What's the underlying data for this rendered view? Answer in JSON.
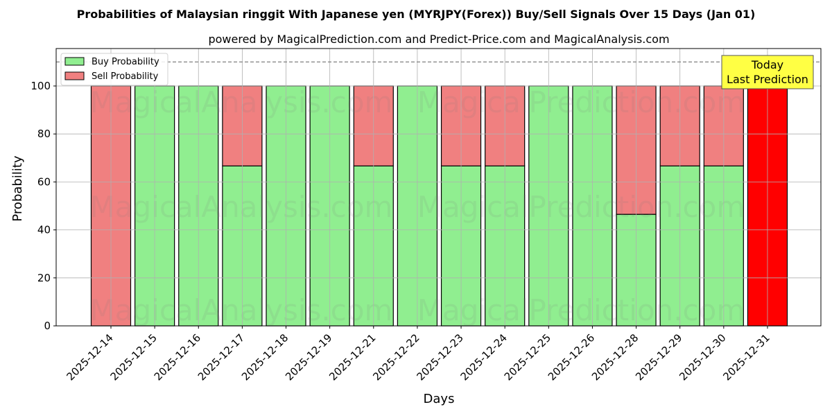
{
  "chart_data": {
    "type": "bar",
    "stacked": true,
    "title": "Probabilities of Malaysian ringgit With Japanese yen (MYRJPY(Forex)) Buy/Sell Signals Over 15 Days (Jan 01)",
    "subtitle": "powered by MagicalPrediction.com and Predict-Price.com and MagicalAnalysis.com",
    "xlabel": "Days",
    "ylabel": "Probability",
    "ylim": [
      0,
      115.6
    ],
    "yticks": [
      0,
      20,
      40,
      60,
      80,
      100
    ],
    "grid": true,
    "legend_position": "upper left",
    "reference_line": {
      "y": 110,
      "style": "dashed",
      "color": "#808080"
    },
    "categories": [
      "2025-12-14",
      "2025-12-15",
      "2025-12-16",
      "2025-12-17",
      "2025-12-18",
      "2025-12-19",
      "2025-12-21",
      "2025-12-22",
      "2025-12-23",
      "2025-12-24",
      "2025-12-25",
      "2025-12-26",
      "2025-12-28",
      "2025-12-29",
      "2025-12-30",
      "2025-12-31"
    ],
    "series": [
      {
        "name": "Buy Probability",
        "color": "#90ee90",
        "values": [
          0,
          100,
          100,
          66.67,
          100,
          100,
          66.67,
          100,
          66.67,
          66.67,
          100,
          100,
          46.5,
          66.67,
          66.67,
          0
        ]
      },
      {
        "name": "Sell Probability",
        "color": "#f08080",
        "values": [
          100,
          0,
          0,
          33.33,
          0,
          0,
          33.33,
          0,
          33.33,
          33.33,
          0,
          0,
          53.5,
          33.33,
          33.33,
          100
        ]
      }
    ],
    "highlight": {
      "index": 15,
      "color": "#ff0000"
    },
    "annotation": {
      "line1": "Today",
      "line2": "Last Prediction",
      "box_color": "#ffff44"
    },
    "watermarks": [
      "MagicalAnalysis.com",
      "MagicalPrediction.com"
    ]
  }
}
